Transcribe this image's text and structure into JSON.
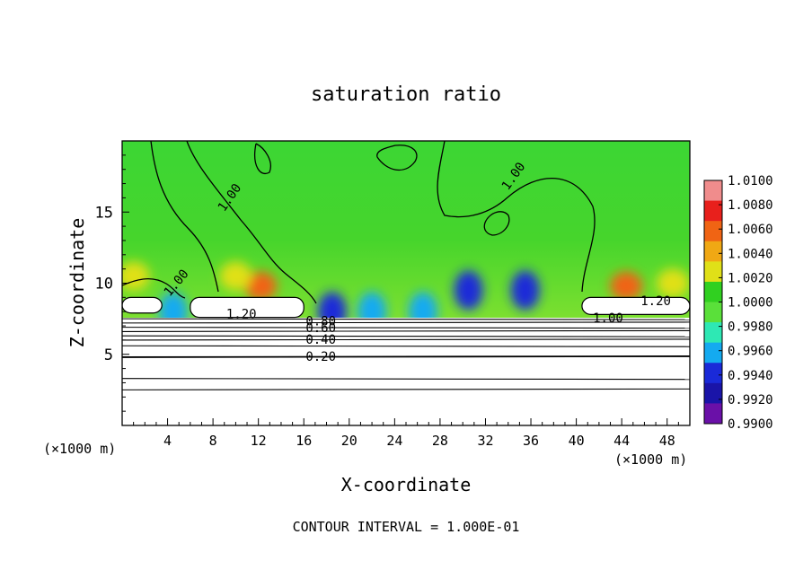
{
  "chart_data": {
    "type": "heatmap",
    "title": "saturation ratio",
    "xlabel": "X-coordinate",
    "ylabel": "Z-coordinate",
    "x_unit_left": "(×1000 m)",
    "x_unit_right": "(×1000 m)",
    "footer": "CONTOUR INTERVAL = 1.000E-01",
    "xlim": [
      0,
      50
    ],
    "ylim": [
      0,
      20
    ],
    "x_ticks": [
      "4",
      "8",
      "12",
      "16",
      "20",
      "24",
      "28",
      "32",
      "36",
      "40",
      "44",
      "48"
    ],
    "y_ticks": [
      "5",
      "10",
      "15"
    ],
    "x_tick_values": [
      4,
      8,
      12,
      16,
      20,
      24,
      28,
      32,
      36,
      40,
      44,
      48
    ],
    "y_tick_values": [
      5,
      10,
      15
    ],
    "colorbar": {
      "labels": [
        "1.0100",
        "1.0080",
        "1.0060",
        "1.0040",
        "1.0020",
        "1.0000",
        "0.9980",
        "0.9960",
        "0.9940",
        "0.9920",
        "0.9900"
      ],
      "colors": [
        "#f08c8c",
        "#e8201c",
        "#f06414",
        "#f0a814",
        "#e0e018",
        "#30d020",
        "#5ae03a",
        "#2ee8b4",
        "#14aaf0",
        "#1a2ad8",
        "#1a14a8",
        "#6a10a8"
      ]
    },
    "contour_labels": [
      {
        "text": "1.00",
        "x": 9.5,
        "z": 16.0,
        "angle": -55
      },
      {
        "text": "1.00",
        "x": 34.5,
        "z": 17.5,
        "angle": -55
      },
      {
        "text": "1.00",
        "x": 4.8,
        "z": 10.0,
        "angle": -50
      },
      {
        "text": "1.20",
        "x": 10.5,
        "z": 7.8,
        "angle": 0
      },
      {
        "text": "1.20",
        "x": 47.0,
        "z": 8.7,
        "angle": 0
      },
      {
        "text": "1.00",
        "x": 42.8,
        "z": 7.5,
        "angle": 0
      },
      {
        "text": "0.80",
        "x": 17.5,
        "z": 7.3,
        "angle": 0
      },
      {
        "text": "0.60",
        "x": 17.5,
        "z": 6.8,
        "angle": 0
      },
      {
        "text": "0.40",
        "x": 17.5,
        "z": 6.0,
        "angle": 0
      },
      {
        "text": "0.20",
        "x": 17.5,
        "z": 4.8,
        "angle": 0
      }
    ],
    "cloud_regions": [
      {
        "x0": 0,
        "x1": 3.5,
        "z0": 7.9,
        "z1": 9.0
      },
      {
        "x0": 6.0,
        "x1": 16.0,
        "z0": 7.6,
        "z1": 9.0
      },
      {
        "x0": 40.5,
        "x1": 50,
        "z0": 7.8,
        "z1": 9.0
      }
    ],
    "warm_spots": [
      {
        "x": 12.2,
        "z": 9.8,
        "value": 1.006
      },
      {
        "x": 44.4,
        "z": 9.8,
        "value": 1.006
      },
      {
        "x": 10.0,
        "z": 10.5,
        "value": 1.003
      },
      {
        "x": 1.0,
        "z": 10.5,
        "value": 1.002
      },
      {
        "x": 48.5,
        "z": 10.0,
        "value": 1.003
      }
    ],
    "cool_spots": [
      {
        "x": 18.5,
        "z": 8.0,
        "value": 0.993
      },
      {
        "x": 22.0,
        "z": 8.0,
        "value": 0.994
      },
      {
        "x": 30.5,
        "z": 9.5,
        "value": 0.993
      },
      {
        "x": 35.5,
        "z": 9.5,
        "value": 0.993
      },
      {
        "x": 4.5,
        "z": 8.0,
        "value": 0.994
      },
      {
        "x": 26.5,
        "z": 8.0,
        "value": 0.995
      }
    ],
    "stable_contours_z": [
      2.5,
      3.3,
      4.8,
      5.6,
      6.0,
      6.3,
      6.6,
      6.9,
      7.2,
      7.5
    ]
  }
}
